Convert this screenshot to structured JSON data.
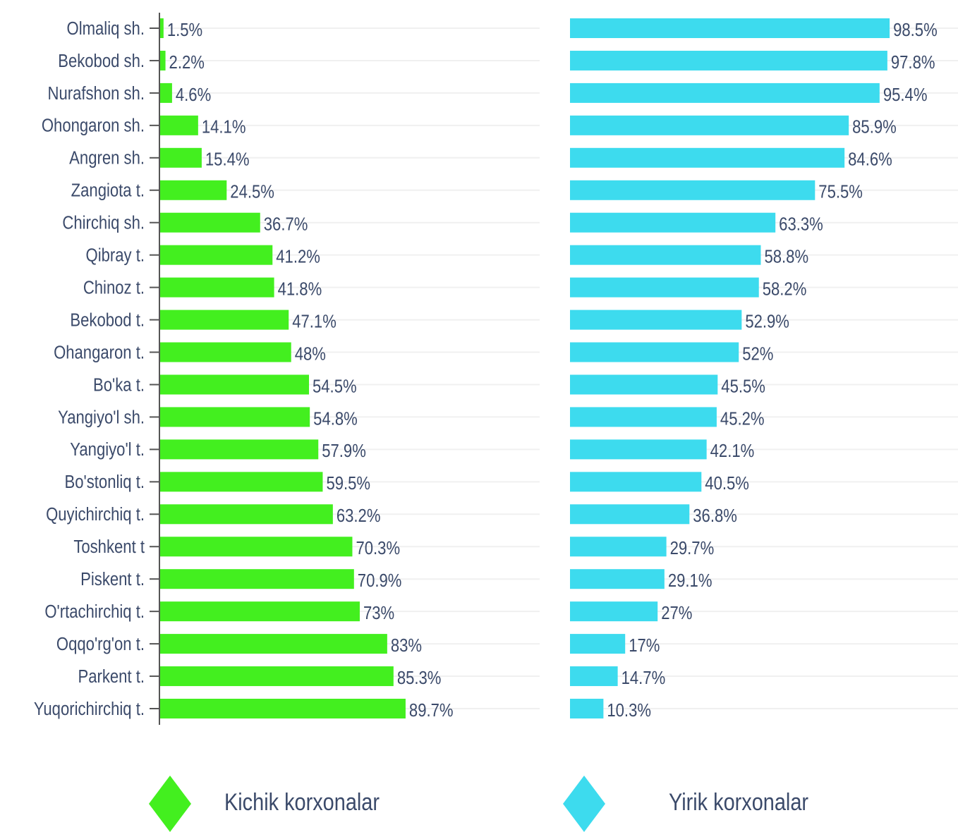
{
  "chart_data": {
    "type": "bar",
    "orientation": "horizontal",
    "categories": [
      "Olmaliq sh.",
      "Bekobod sh.",
      "Nurafshon sh.",
      "Ohongaron sh.",
      "Angren sh.",
      "Zangiota t.",
      "Chirchiq sh.",
      "Qibray t.",
      "Chinoz t.",
      "Bekobod t.",
      "Ohangaron t.",
      "Bo'ka t.",
      "Yangiyo'l sh.",
      "Yangiyo'l t.",
      "Bo'stonliq t.",
      "Quyichirchiq t.",
      "Toshkent t",
      "Piskent t.",
      "O'rtachirchiq t.",
      "Oqqo'rg'on t.",
      "Parkent t.",
      "Yuqorichirchiq t."
    ],
    "series": [
      {
        "name": "Kichik korxonalar",
        "color": "#43ef1f",
        "values": [
          1.5,
          2.2,
          4.6,
          14.1,
          15.4,
          24.5,
          36.7,
          41.2,
          41.8,
          47.1,
          48,
          54.5,
          54.8,
          57.9,
          59.5,
          63.2,
          70.3,
          70.9,
          73,
          83,
          85.3,
          89.7
        ],
        "value_labels": [
          "1.5%",
          "2.2%",
          "4.6%",
          "14.1%",
          "15.4%",
          "24.5%",
          "36.7%",
          "41.2%",
          "41.8%",
          "47.1%",
          "48%",
          "54.5%",
          "54.8%",
          "57.9%",
          "59.5%",
          "63.2%",
          "70.3%",
          "70.9%",
          "73%",
          "83%",
          "85.3%",
          "89.7%"
        ]
      },
      {
        "name": "Yirik korxonalar",
        "color": "#3ddbee",
        "values": [
          98.5,
          97.8,
          95.4,
          85.9,
          84.6,
          75.5,
          63.3,
          58.8,
          58.2,
          52.9,
          52,
          45.5,
          45.2,
          42.1,
          40.5,
          36.8,
          29.7,
          29.1,
          27,
          17,
          14.7,
          10.3
        ],
        "value_labels": [
          "98.5%",
          "97.8%",
          "95.4%",
          "85.9%",
          "84.6%",
          "75.5%",
          "63.3%",
          "58.8%",
          "58.2%",
          "52.9%",
          "52%",
          "45.5%",
          "45.2%",
          "42.1%",
          "40.5%",
          "36.8%",
          "29.7%",
          "29.1%",
          "27%",
          "17%",
          "14.7%",
          "10.3%"
        ]
      }
    ],
    "legend": true,
    "grid": true
  }
}
